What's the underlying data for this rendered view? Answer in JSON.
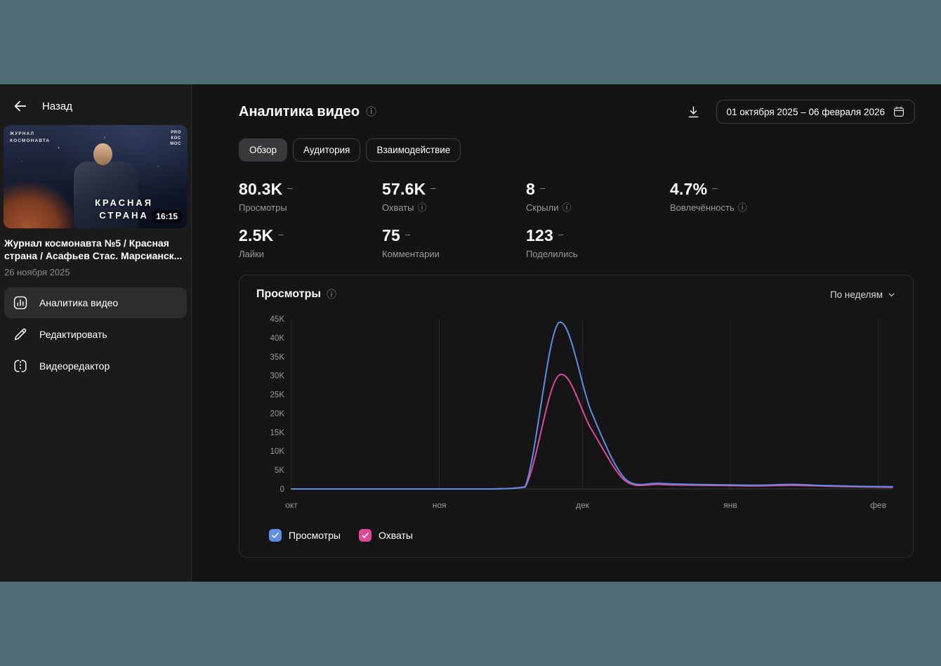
{
  "icons": {
    "info": "ⓘ"
  },
  "colors": {
    "desktop_bg": "#4f6b74",
    "window_bg": "#141414",
    "sidebar_bg": "#1b1b1b",
    "accent_blue": "#5d8ee6",
    "accent_pink": "#e0479c"
  },
  "sidebar": {
    "back_label": "Назад",
    "video": {
      "thumb_watermark": "ЖУРНАЛ КОСМОНАВТА",
      "logo_lines": [
        "PRO",
        "КОС",
        "МОС"
      ],
      "thumb_title_lines": [
        "КРАСНАЯ",
        "СТРАНА"
      ],
      "duration": "16:15",
      "title": "Журнал космонавта №5 / Красная страна / Асафьев Стас. Марсианск...",
      "date": "26 ноября 2025"
    },
    "menu": [
      {
        "label": "Аналитика видео",
        "icon": "analytics-icon",
        "active": true
      },
      {
        "label": "Редактировать",
        "icon": "edit-pencil-icon",
        "active": false
      },
      {
        "label": "Видеоредактор",
        "icon": "video-editor-icon",
        "active": false
      }
    ]
  },
  "header": {
    "title": "Аналитика видео",
    "date_range": "01 октября 2025 – 06 февраля 2026"
  },
  "tabs": [
    {
      "label": "Обзор",
      "active": true
    },
    {
      "label": "Аудитория",
      "active": false
    },
    {
      "label": "Взаимодействие",
      "active": false
    }
  ],
  "stats": [
    {
      "value": "80.3K",
      "trend": "–",
      "label": "Просмотры"
    },
    {
      "value": "57.6K",
      "trend": "–",
      "label": "Охваты"
    },
    {
      "value": "8",
      "trend": "–",
      "label": "Скрыли"
    },
    {
      "value": "4.7%",
      "trend": "–",
      "label": "Вовлечённость"
    },
    {
      "value": "2.5K",
      "trend": "–",
      "label": "Лайки"
    },
    {
      "value": "75",
      "trend": "–",
      "label": "Комментарии"
    },
    {
      "value": "123",
      "trend": "–",
      "label": "Поделились"
    }
  ],
  "chart": {
    "title": "Просмотры",
    "granularity_label": "По неделям",
    "legend": [
      {
        "label": "Просмотры",
        "color": "#5d8ee6"
      },
      {
        "label": "Охваты",
        "color": "#e0479c"
      }
    ]
  },
  "chart_data": {
    "type": "line",
    "title": "Просмотры",
    "x_axis_note": "weeks from 01.10.2025 to 06.02.2026",
    "x_tick_labels": [
      "окт",
      "ноя",
      "дек",
      "янв",
      "фев"
    ],
    "x_tick_days": [
      0,
      31,
      61,
      92,
      123
    ],
    "x_max_day": 126,
    "x_days": [
      0,
      7,
      14,
      21,
      28,
      35,
      42,
      49,
      56,
      63,
      70,
      77,
      84,
      91,
      98,
      105,
      112,
      119,
      126
    ],
    "ylim": [
      0,
      45000
    ],
    "y_tick_values": [
      0,
      5000,
      10000,
      15000,
      20000,
      25000,
      30000,
      35000,
      40000,
      45000
    ],
    "y_tick_labels": [
      "0",
      "5K",
      "10K",
      "15K",
      "20K",
      "25K",
      "30K",
      "35K",
      "40K",
      "45K"
    ],
    "grid": "vertical-month-lines",
    "legend_position": "bottom",
    "series": [
      {
        "name": "Просмотры",
        "color": "#5d8ee6",
        "values": [
          0,
          0,
          0,
          0,
          0,
          0,
          0,
          600,
          44000,
          20000,
          2600,
          1500,
          1200,
          1100,
          1000,
          1200,
          900,
          700,
          600
        ]
      },
      {
        "name": "Охваты",
        "color": "#e0479c",
        "values": [
          0,
          0,
          0,
          0,
          0,
          0,
          0,
          500,
          30000,
          15500,
          2100,
          1200,
          1000,
          900,
          800,
          950,
          750,
          550,
          450
        ]
      }
    ]
  }
}
